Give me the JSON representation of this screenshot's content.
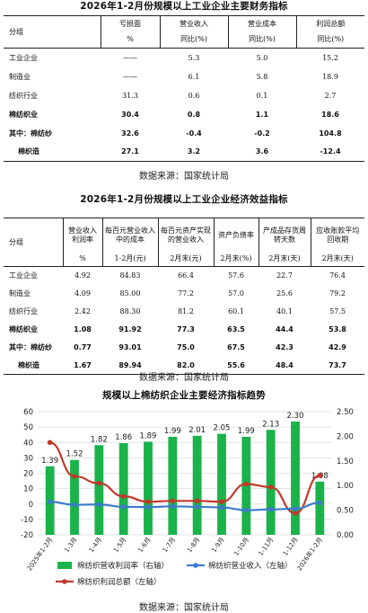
{
  "table1": {
    "title": "2026年1-2月份规模以上工业企业主要财务指标",
    "headers": [
      {
        "label": "分组"
      },
      {
        "label": "亏损面",
        "unit": "%"
      },
      {
        "label": "营业收入",
        "unit": "同比(%)"
      },
      {
        "label": "营业成本",
        "unit": "同比(%)"
      },
      {
        "label": "利润总额",
        "unit": "同比(%)"
      }
    ],
    "rows": [
      {
        "name": "工业企业",
        "c1": "——",
        "c2": "5.3",
        "c3": "5.0",
        "c4": "15.2"
      },
      {
        "name": "制造业",
        "c1": "——",
        "c2": "6.1",
        "c3": "5.8",
        "c4": "18.9"
      },
      {
        "name": "纺织行业",
        "c1": "31.3",
        "c2": "0.6",
        "c3": "0.1",
        "c4": "2.7"
      },
      {
        "name": "棉纺织业",
        "c1": "30.4",
        "c2": "0.8",
        "c3": "1.1",
        "c4": "18.6"
      },
      {
        "name": "其中：棉纺纱",
        "c1": "32.6",
        "c2": "-0.4",
        "c3": "-0.2",
        "c4": "104.8"
      },
      {
        "name": "棉织造",
        "c1": "27.1",
        "c2": "3.2",
        "c3": "3.6",
        "c4": "-12.4"
      }
    ],
    "source": "数据来源：国家统计局"
  },
  "table2": {
    "title": "2026年1-2月份规模以上工业企业经济效益指标",
    "headers": [
      {
        "label": "分组"
      },
      {
        "label": "营业收入利润率",
        "unit": "%"
      },
      {
        "label": "每百元营业收入中的成本",
        "unit": "1-2月(元)"
      },
      {
        "label": "每百元资产实现的营业收入",
        "unit": "2月末(元)"
      },
      {
        "label": "资产负债率",
        "unit": "2月末(%)"
      },
      {
        "label": "产成品存货周转天数",
        "unit": "2月末(天)"
      },
      {
        "label": "应收账款平均回收期",
        "unit": "2月末(天)"
      }
    ],
    "rows": [
      {
        "name": "工业企业",
        "c1": "4.92",
        "c2": "84.83",
        "c3": "66.4",
        "c4": "57.6",
        "c5": "22.7",
        "c6": "76.4"
      },
      {
        "name": "制造业",
        "c1": "4.09",
        "c2": "85.00",
        "c3": "77.2",
        "c4": "57.0",
        "c5": "25.6",
        "c6": "79.2"
      },
      {
        "name": "纺织行业",
        "c1": "2.42",
        "c2": "88.30",
        "c3": "81.2",
        "c4": "60.1",
        "c5": "40.1",
        "c6": "57.5"
      },
      {
        "name": "棉纺织业",
        "c1": "1.08",
        "c2": "91.92",
        "c3": "77.3",
        "c4": "63.5",
        "c5": "44.4",
        "c6": "53.8"
      },
      {
        "name": "其中：棉纺纱",
        "c1": "0.77",
        "c2": "93.01",
        "c3": "75.0",
        "c4": "67.5",
        "c5": "42.3",
        "c6": "42.9"
      },
      {
        "name": "棉织造",
        "c1": "1.67",
        "c2": "89.94",
        "c3": "82.0",
        "c4": "55.6",
        "c5": "48.4",
        "c6": "73.7"
      }
    ],
    "source": "数据来源：国家统计局"
  },
  "chart_title": "规模以上棉纺织企业主要经济指标趋势",
  "chart_source": "数据来源：国家统计局",
  "chart_data": {
    "type": "bar",
    "title": "规模以上棉纺织企业主要经济指标趋势",
    "categories": [
      "2025年1-2月",
      "1-3月",
      "1-4月",
      "1-5月",
      "1-6月",
      "1-7月",
      "1-8月",
      "1-9月",
      "1-10月",
      "1-11月",
      "1-12月",
      "2026年1-2月"
    ],
    "left_axis": {
      "ticks": [
        "-20",
        "-10",
        "0",
        "10",
        "20",
        "30",
        "40",
        "50",
        "60"
      ],
      "ylim": [
        -20,
        60
      ]
    },
    "right_axis": {
      "ticks": [
        "0.00",
        "0.50",
        "1.00",
        "1.50",
        "2.00",
        "2.50"
      ],
      "ylim": [
        0,
        2.5
      ]
    },
    "series": [
      {
        "name": "棉纺织营收利润率（右轴）",
        "type": "bar",
        "axis": "right",
        "color": "#19b34a",
        "values": [
          1.39,
          1.52,
          1.82,
          1.86,
          1.89,
          1.99,
          2.01,
          2.05,
          1.99,
          2.13,
          2.3,
          1.08
        ],
        "labels": [
          "1.39",
          "1.52",
          "1.82",
          "1.86",
          "1.89",
          "1.99",
          "2.01",
          "2.05",
          "1.99",
          "2.13",
          "2.30",
          "1.08"
        ]
      },
      {
        "name": "棉纺织营业收入（左轴）",
        "type": "line",
        "axis": "left",
        "color": "#3d7cc9",
        "values": [
          1.5,
          -0.5,
          -0.3,
          -1.8,
          -2.0,
          -1.5,
          -1.8,
          -2.2,
          -4.0,
          -3.5,
          -3.0,
          0.8
        ]
      },
      {
        "name": "棉纺织利润总额（左轴）",
        "type": "line",
        "axis": "left",
        "color": "#c0392b",
        "values": [
          40.0,
          18.0,
          13.5,
          5.0,
          1.5,
          2.0,
          2.0,
          1.5,
          13.0,
          11.0,
          -6.0,
          18.6
        ]
      }
    ],
    "legend_position": "bottom",
    "grid": true
  }
}
